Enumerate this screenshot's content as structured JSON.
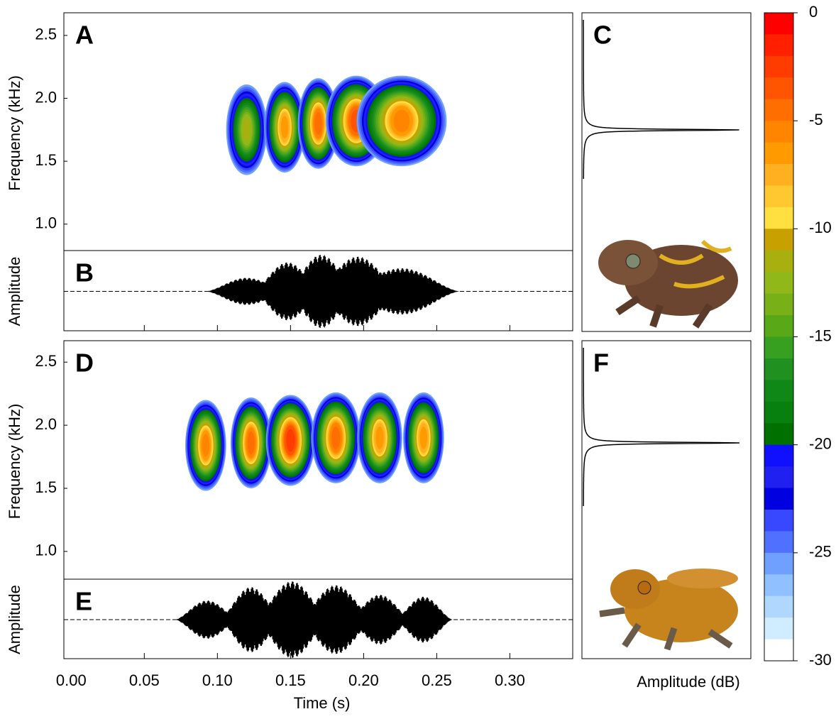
{
  "chart_data": [
    {
      "type": "spectrogram",
      "label": "A",
      "ylabel": "Frequency (kHz)",
      "x": [
        0.12,
        0.146,
        0.169,
        0.195,
        0.226
      ],
      "values": [
        1.75,
        1.77,
        1.8,
        1.82,
        1.82
      ],
      "levels": [
        -11,
        -6,
        -4,
        -3,
        -5
      ],
      "durations": [
        0.02,
        0.02,
        0.02,
        0.03,
        0.044
      ],
      "xlim": [
        -0.005,
        0.343
      ],
      "ylim": [
        0.79,
        2.68
      ],
      "yticks": [
        {
          "value": 1,
          "label": "1.0"
        },
        1.5,
        {
          "value": 2,
          "label": "2.0"
        },
        2.5
      ]
    },
    {
      "type": "waveform",
      "label": "B",
      "ylabel": "Amplitude",
      "x": [
        0.12,
        0.148,
        0.171,
        0.196,
        0.226
      ],
      "values": [
        0.35,
        0.75,
        0.95,
        0.9,
        0.6
      ],
      "durations": [
        0.028,
        0.024,
        0.024,
        0.03,
        0.04
      ],
      "xlim": [
        -0.005,
        0.343
      ]
    },
    {
      "type": "spectrum",
      "label": "C",
      "values": [
        1.75
      ],
      "ylim": [
        0.15,
        2.68
      ]
    },
    {
      "type": "spectrogram",
      "label": "D",
      "ylabel": "Frequency (kHz)",
      "x": [
        0.092,
        0.123,
        0.15,
        0.181,
        0.211,
        0.241
      ],
      "values": [
        1.84,
        1.86,
        1.88,
        1.9,
        1.9,
        1.9
      ],
      "levels": [
        -5,
        -4,
        -2,
        -4,
        -6,
        -6
      ],
      "durations": [
        0.02,
        0.02,
        0.024,
        0.024,
        0.022,
        0.02
      ],
      "xlim": [
        -0.005,
        0.343
      ],
      "ylim": [
        0.78,
        2.67
      ],
      "yticks": [
        {
          "value": 1,
          "label": "1.0"
        },
        1.5,
        {
          "value": 2,
          "label": "2.0"
        },
        2.5
      ]
    },
    {
      "type": "waveform",
      "label": "E",
      "ylabel": "Amplitude",
      "xlabel": "Time (s)",
      "x": [
        0.093,
        0.123,
        0.151,
        0.181,
        0.211,
        0.241
      ],
      "values": [
        0.5,
        0.85,
        1.0,
        0.9,
        0.65,
        0.6
      ],
      "durations": [
        0.022,
        0.022,
        0.026,
        0.026,
        0.022,
        0.02
      ],
      "xlim": [
        -0.005,
        0.343
      ],
      "xticks": [
        {
          "value": 0,
          "label": "0.00"
        },
        0.05,
        {
          "value": 0.1,
          "label": "0.10"
        },
        0.15,
        {
          "value": 0.2,
          "label": "0.20"
        },
        0.25,
        {
          "value": 0.3,
          "label": "0.30"
        }
      ]
    },
    {
      "type": "spectrum",
      "label": "F",
      "values": [
        1.86
      ],
      "ylim": [
        0.15,
        2.67
      ]
    },
    {
      "type": "colorbar",
      "xlabel": "Amplitude (dB)",
      "ylim": [
        0,
        -30
      ],
      "yticks": [
        0,
        -5,
        -10,
        -15,
        -20,
        -25,
        -30
      ],
      "colors": [
        "#ff0000",
        "#ff2000",
        "#ff3c00",
        "#ff5500",
        "#ff6e00",
        "#ff8400",
        "#ff9a00",
        "#ffb020",
        "#ffc830",
        "#ffe040",
        "#c8a000",
        "#a8b010",
        "#90b818",
        "#78b018",
        "#58a818",
        "#38a020",
        "#209020",
        "#108818",
        "#088010",
        "#007000",
        "#1010ff",
        "#2020f0",
        "#0000e0",
        "#3848ff",
        "#5070ff",
        "#70a0ff",
        "#90c0ff",
        "#b0d8ff",
        "#d0ecff",
        "#ffffff"
      ]
    }
  ]
}
